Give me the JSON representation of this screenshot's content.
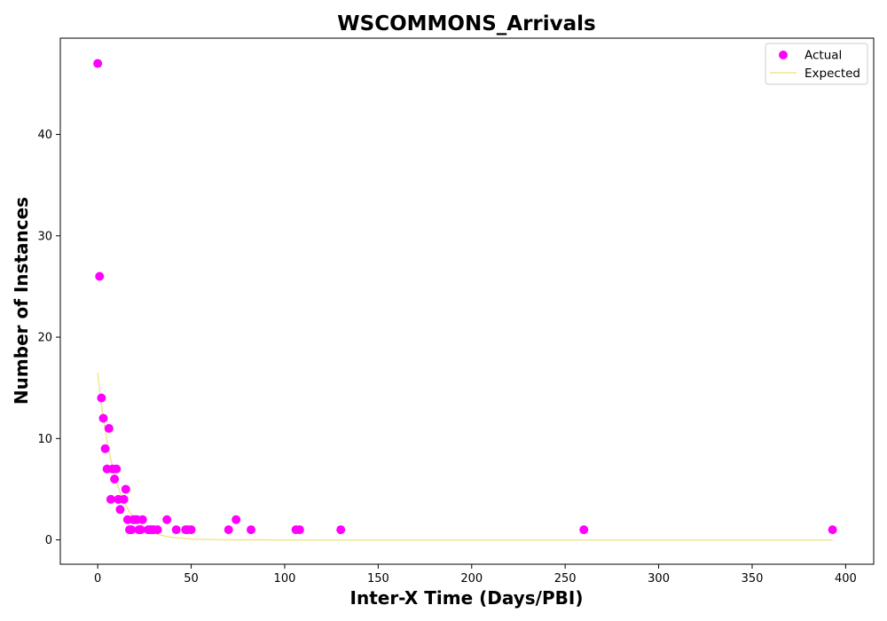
{
  "chart_data": {
    "type": "scatter",
    "title": "WSCOMMONS_Arrivals",
    "xlabel": "Inter-X Time (Days/PBI)",
    "ylabel": "Number of Instances",
    "xlim": [
      -20,
      415
    ],
    "ylim": [
      -2.4,
      49.5
    ],
    "xticks": [
      0,
      50,
      100,
      150,
      200,
      250,
      300,
      350,
      400
    ],
    "yticks": [
      0,
      10,
      20,
      30,
      40
    ],
    "grid": false,
    "legend_position": "top-right",
    "series": [
      {
        "name": "Actual",
        "kind": "scatter",
        "color": "#ff00ff",
        "points": [
          [
            0,
            47
          ],
          [
            1,
            26
          ],
          [
            2,
            14
          ],
          [
            3,
            12
          ],
          [
            4,
            9
          ],
          [
            5,
            7
          ],
          [
            6,
            11
          ],
          [
            7,
            4
          ],
          [
            8,
            7
          ],
          [
            9,
            6
          ],
          [
            10,
            7
          ],
          [
            11,
            4
          ],
          [
            12,
            3
          ],
          [
            14,
            4
          ],
          [
            15,
            5
          ],
          [
            16,
            2
          ],
          [
            17,
            1
          ],
          [
            18,
            1
          ],
          [
            19,
            2
          ],
          [
            20,
            2
          ],
          [
            21,
            2
          ],
          [
            22,
            1
          ],
          [
            23,
            1
          ],
          [
            24,
            2
          ],
          [
            27,
            1
          ],
          [
            28,
            1
          ],
          [
            29,
            1
          ],
          [
            30,
            1
          ],
          [
            32,
            1
          ],
          [
            37,
            2
          ],
          [
            42,
            1
          ],
          [
            47,
            1
          ],
          [
            48,
            1
          ],
          [
            50,
            1
          ],
          [
            70,
            1
          ],
          [
            74,
            2
          ],
          [
            82,
            1
          ],
          [
            106,
            1
          ],
          [
            108,
            1
          ],
          [
            130,
            1
          ],
          [
            260,
            1
          ],
          [
            393,
            1
          ]
        ]
      },
      {
        "name": "Expected",
        "kind": "line",
        "color": "#f0e68c",
        "x_range": [
          0,
          393
        ],
        "a": 16.5,
        "decay": 0.105
      }
    ]
  }
}
